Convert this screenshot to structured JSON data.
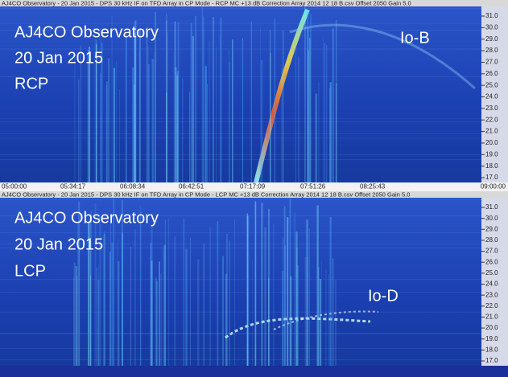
{
  "panels": [
    {
      "header": "AJ4CO Observatory - 20 Jan 2015 - DPS 30 kHz IF on TFD Array in CP Mode - RCP  MC +13 dB  Correction Array 2014 12 18 B.csv  Offset 2050   Gain 5.0",
      "overlay": [
        "AJ4CO Observatory",
        "20 Jan 2015",
        "RCP"
      ],
      "annotation": "Io-B",
      "frequency_labels": [
        "31.0",
        "30.0",
        "29.0",
        "28.0",
        "27.0",
        "26.0",
        "25.0",
        "24.0",
        "23.0",
        "22.0",
        "21.0",
        "20.0",
        "19.0",
        "18.0",
        "17.0"
      ]
    },
    {
      "header": "AJ4CO Observatory - 20 Jan 2015 - DPS 30 kHz IF on TFD Array in CP Mode - LCP  MC +13 dB  Correction Array 2014 12 18 B.csv  Offset 2050   Gain 5.0",
      "overlay": [
        "AJ4CO Observatory",
        "20 Jan 2015",
        "LCP"
      ],
      "annotation": "Io-D",
      "frequency_labels": [
        "31.0",
        "30.0",
        "29.0",
        "28.0",
        "27.0",
        "26.0",
        "25.0",
        "24.0",
        "23.0",
        "22.0",
        "21.0",
        "20.0",
        "19.0",
        "18.0",
        "17.0"
      ]
    }
  ],
  "time_labels": [
    "05:00:00",
    "05:34:17",
    "06:08:34",
    "06:42:51",
    "07:17:09",
    "07:51:26",
    "08:25:43",
    "09:00:00"
  ]
}
